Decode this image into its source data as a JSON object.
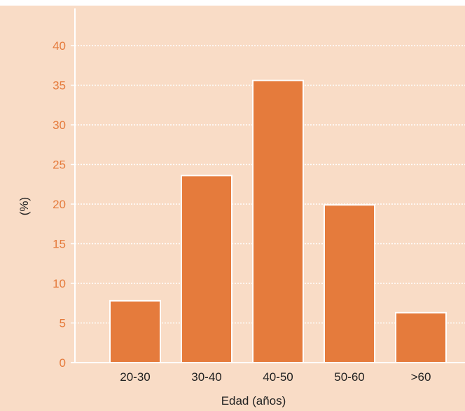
{
  "chart_data": {
    "type": "bar",
    "categories": [
      "20-30",
      "30-40",
      "40-50",
      "50-60",
      ">60"
    ],
    "values": [
      7.8,
      23.6,
      35.6,
      19.9,
      6.3
    ],
    "xlabel": "Edad (años)",
    "ylabel": "(%)",
    "ylim": [
      0,
      45
    ],
    "yticks": [
      0,
      5,
      10,
      15,
      20,
      25,
      30,
      35,
      40
    ],
    "grid": true,
    "legend": "none",
    "colors": {
      "background": "#f9dcc6",
      "bar": "#e57b3c",
      "bar_edge": "#ffffff",
      "axis": "#ffffff",
      "grid": "#ffffff",
      "y_tick_label": "#e57b3c",
      "x_tick_label": "#222222",
      "axis_title": "#222222"
    }
  }
}
